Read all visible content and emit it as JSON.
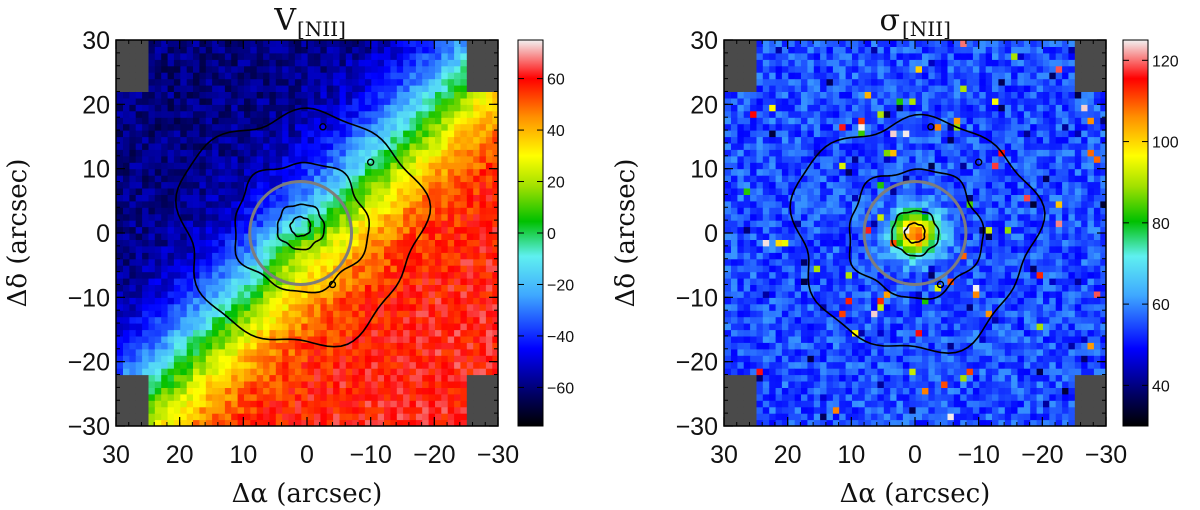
{
  "chart_data": [
    {
      "type": "heatmap",
      "panel": "left",
      "title_main": "V",
      "title_sub": "[NII]",
      "xlabel": "Δα (arcsec)",
      "ylabel": "Δδ (arcsec)",
      "xlim": [
        30,
        -30
      ],
      "ylim": [
        -30,
        30
      ],
      "x_ticks": [
        30,
        20,
        10,
        0,
        -10,
        -20,
        -30
      ],
      "x_tick_labels": [
        "30",
        "20",
        "10",
        "0",
        "−10",
        "−20",
        "−30"
      ],
      "y_ticks": [
        30,
        20,
        10,
        0,
        -10,
        -20,
        -30
      ],
      "y_tick_labels": [
        "30",
        "20",
        "10",
        "0",
        "−10",
        "−20",
        "−30"
      ],
      "colorbar": {
        "range": [
          -75,
          75
        ],
        "ticks": [
          60,
          40,
          20,
          0,
          -20,
          -40,
          -60
        ],
        "tick_labels": [
          "60",
          "40",
          "20",
          "0",
          "−20",
          "−40",
          "−60"
        ],
        "colormap": "rainbow"
      },
      "field": {
        "kind": "rotation",
        "amplitude": 60,
        "max_axis_angle_deg": 225,
        "nucleus_offset": [
          3,
          -3
        ]
      },
      "contour_radii": [
        1.5,
        3.5,
        10,
        18
      ],
      "contour_offset": [
        1,
        1
      ],
      "ring": {
        "x": 1,
        "y": 0,
        "r": 8,
        "color": "#7d7d7d"
      }
    },
    {
      "type": "heatmap",
      "panel": "right",
      "title_main": "σ",
      "title_sub": "[NII]",
      "xlabel": "Δα (arcsec)",
      "ylabel": "Δδ (arcsec)",
      "xlim": [
        30,
        -30
      ],
      "ylim": [
        -30,
        30
      ],
      "x_ticks": [
        30,
        20,
        10,
        0,
        -10,
        -20,
        -30
      ],
      "x_tick_labels": [
        "30",
        "20",
        "10",
        "0",
        "−10",
        "−20",
        "−30"
      ],
      "y_ticks": [
        30,
        20,
        10,
        0,
        -10,
        -20,
        -30
      ],
      "y_tick_labels": [
        "30",
        "20",
        "10",
        "0",
        "−10",
        "−20",
        "−30"
      ],
      "colorbar": {
        "range": [
          30,
          125
        ],
        "ticks": [
          120,
          100,
          80,
          60,
          40
        ],
        "tick_labels": [
          "120",
          "100",
          "80",
          "60",
          "40"
        ],
        "colormap": "rainbow"
      },
      "field": {
        "kind": "dispersion",
        "background": 55,
        "peak": 110,
        "peak_width": 2.5
      },
      "contour_radii": [
        1.5,
        3.5,
        10,
        18
      ],
      "contour_offset": [
        0,
        0
      ],
      "ring": {
        "x": 0,
        "y": 0,
        "r": 8,
        "color": "#7d7d7d"
      }
    }
  ],
  "colors": {
    "masked": "#4a4a4a",
    "contour": "#000000",
    "frame": "#000000"
  }
}
